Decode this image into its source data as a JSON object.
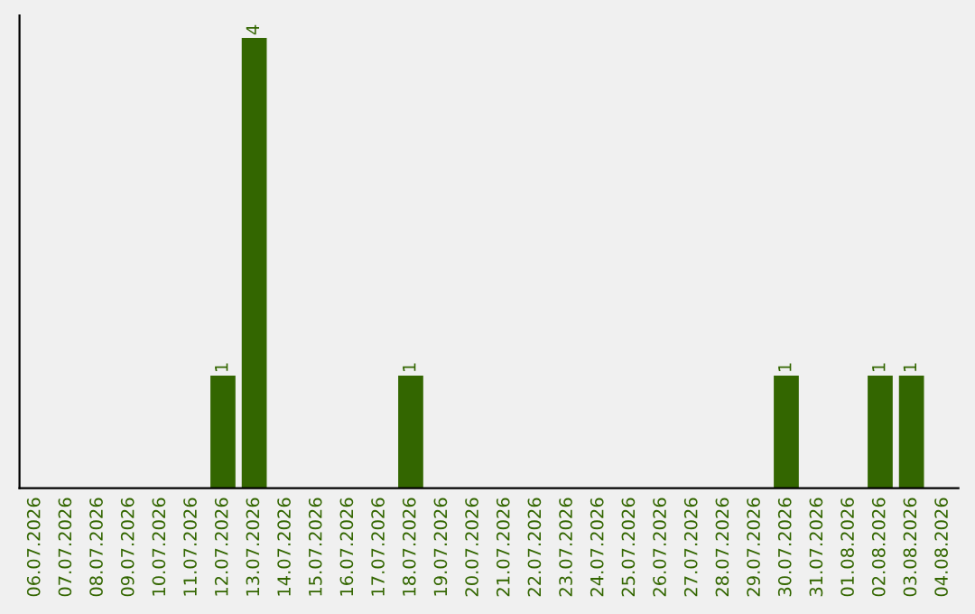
{
  "chart_data": {
    "type": "bar",
    "categories": [
      "06.07.2026",
      "07.07.2026",
      "08.07.2026",
      "09.07.2026",
      "10.07.2026",
      "11.07.2026",
      "12.07.2026",
      "13.07.2026",
      "14.07.2026",
      "15.07.2026",
      "16.07.2026",
      "17.07.2026",
      "18.07.2026",
      "19.07.2026",
      "20.07.2026",
      "21.07.2026",
      "22.07.2026",
      "23.07.2026",
      "24.07.2026",
      "25.07.2026",
      "26.07.2026",
      "27.07.2026",
      "28.07.2026",
      "29.07.2026",
      "30.07.2026",
      "31.07.2026",
      "01.08.2026",
      "02.08.2026",
      "03.08.2026",
      "04.08.2026"
    ],
    "values": [
      0,
      0,
      0,
      0,
      0,
      0,
      1,
      4,
      0,
      0,
      0,
      0,
      1,
      0,
      0,
      0,
      0,
      0,
      0,
      0,
      0,
      0,
      0,
      0,
      1,
      0,
      0,
      1,
      1,
      0
    ],
    "color": "#336600",
    "value_labels": [
      null,
      null,
      null,
      null,
      null,
      null,
      "1",
      "4",
      null,
      null,
      null,
      null,
      "1",
      null,
      null,
      null,
      null,
      null,
      null,
      null,
      null,
      null,
      null,
      null,
      "1",
      null,
      null,
      "1",
      "1",
      null
    ],
    "tick_labels": "x",
    "grid": false
  }
}
